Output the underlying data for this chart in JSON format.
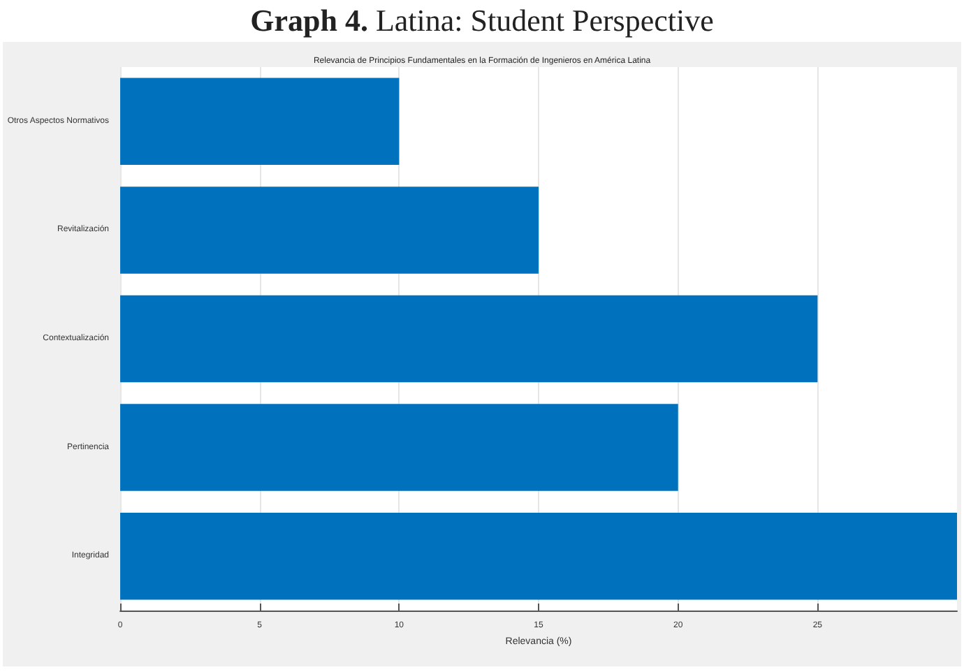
{
  "chart_data": {
    "type": "bar",
    "orientation": "horizontal",
    "title": "Graph 4. Latina: Student Perspective",
    "subtitle": "Relevancia de Principios Fundamentales en la Formación de Ingenieros en América Latina",
    "xlabel": "Relevancia (%)",
    "categories": [
      "Otros Aspectos Normativos",
      "Revitalización",
      "Contextualización",
      "Pertinencia",
      "Integridad"
    ],
    "values": [
      10,
      15,
      25,
      20,
      30
    ],
    "color": "#0072bd",
    "xlim": [
      0,
      30
    ],
    "xticks": [
      0,
      5,
      10,
      15,
      20,
      25
    ],
    "grid": "x"
  }
}
